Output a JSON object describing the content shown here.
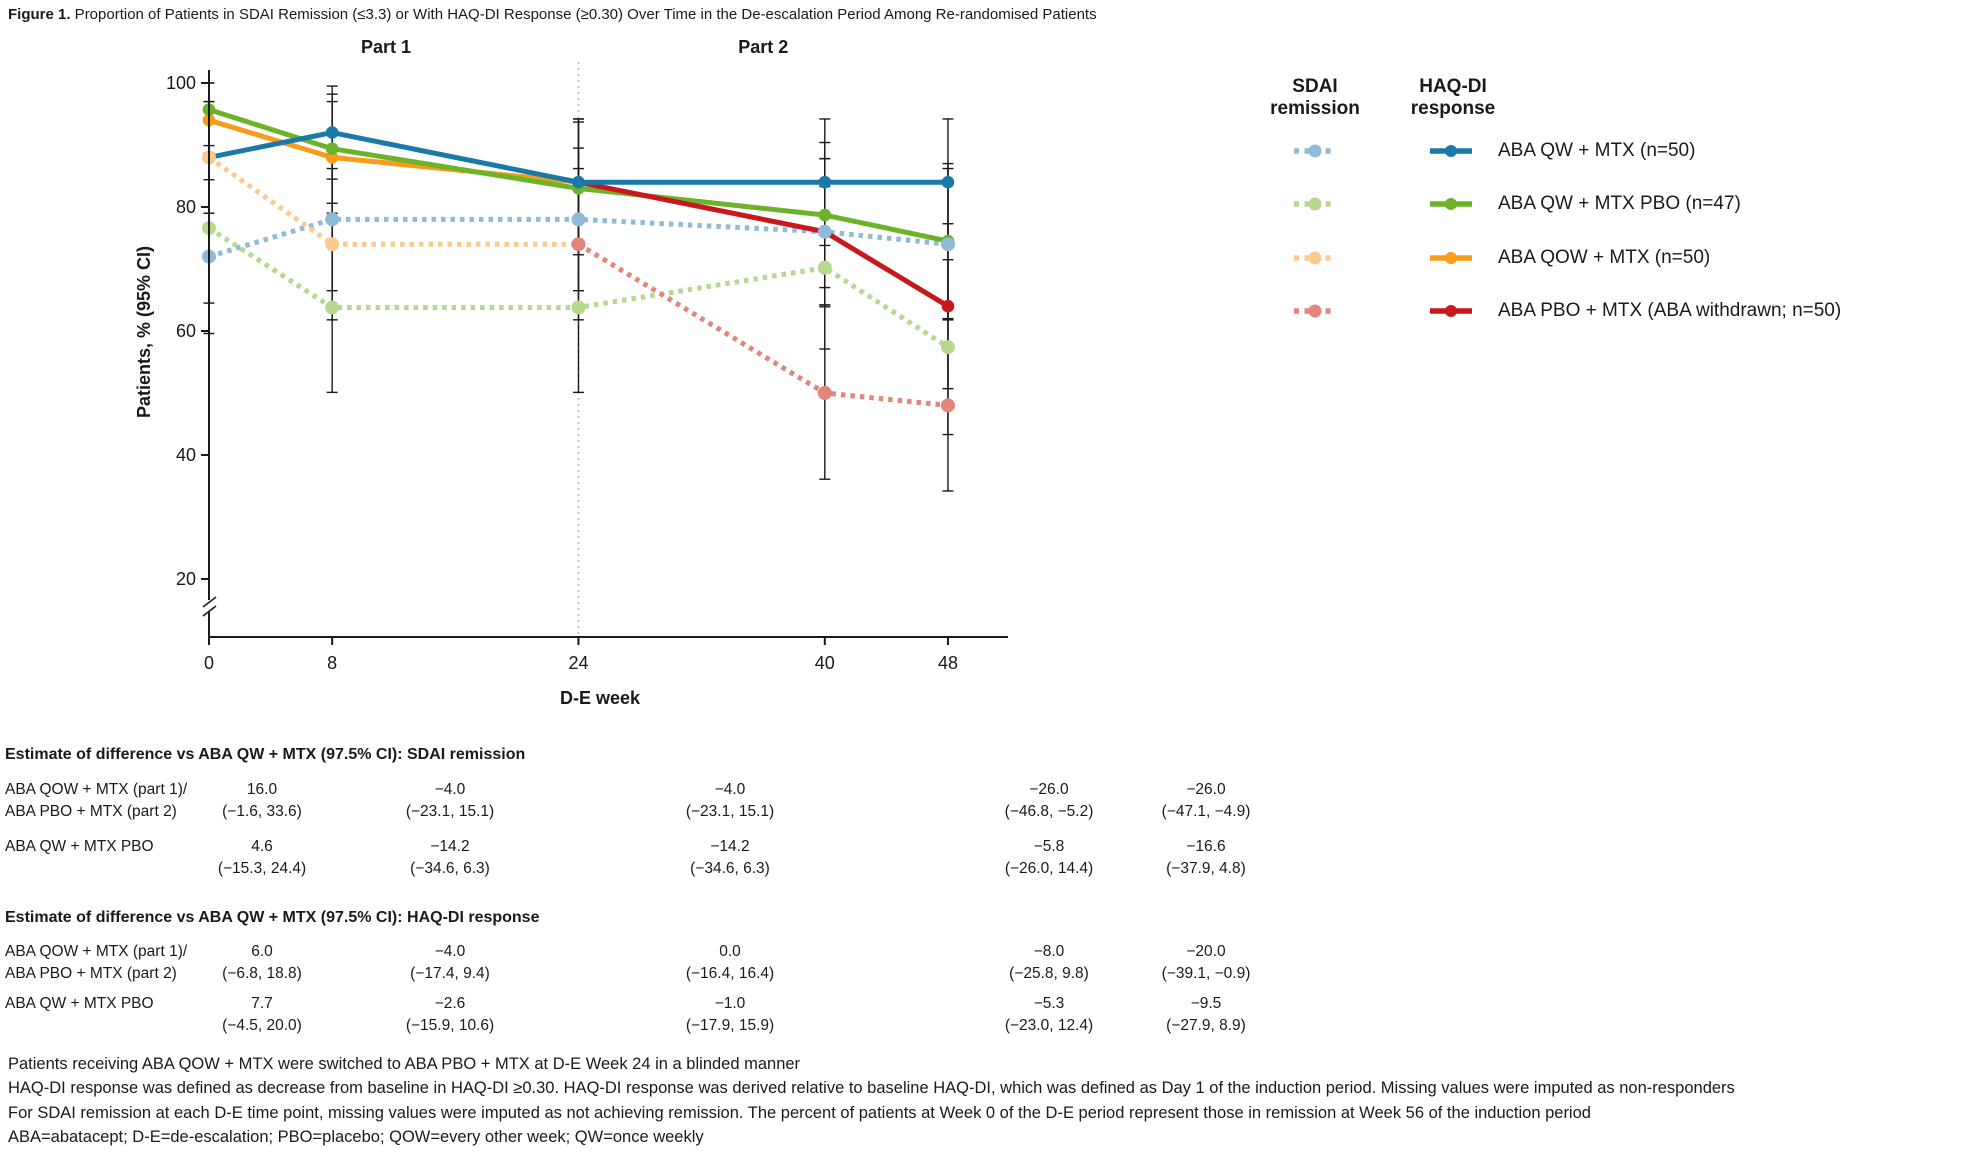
{
  "title": {
    "bold": "Figure 1.",
    "text": " Proportion of Patients in SDAI Remission (≤3.3) or With HAQ-DI Response (≥0.30) Over Time in the De-escalation Period Among Re-randomised Patients"
  },
  "chart_data": {
    "type": "line",
    "xlabel": "D-E week",
    "ylabel": "Patients, % (95% CI)",
    "x_ticks": [
      0,
      8,
      24,
      40,
      48
    ],
    "y_ticks": [
      20,
      40,
      60,
      80,
      100
    ],
    "ylim": [
      20,
      100
    ],
    "axis_break_below": 20,
    "part_labels": [
      {
        "text": "Part 1",
        "center_week": 11.5
      },
      {
        "text": "Part 2",
        "center_week": 36
      }
    ],
    "separator_week": 24,
    "series": [
      {
        "key": "sdai-aba-qw-mtx",
        "measure": "SDAI remission",
        "group": "ABA QW + MTX (n=50)",
        "style": "dotted",
        "color": "#8fbbd9",
        "x": [
          0,
          8,
          24,
          40,
          48
        ],
        "values": [
          72,
          78,
          78,
          76,
          74
        ],
        "ci_low": [
          59.6,
          66.5,
          66.5,
          64.2,
          61.8
        ],
        "ci_high": [
          84.4,
          89.5,
          89.5,
          87.8,
          86.2
        ],
        "marker_x": [
          0,
          8,
          24,
          40,
          48
        ]
      },
      {
        "key": "sdai-aba-qw-mtx-pbo",
        "measure": "SDAI remission",
        "group": "ABA QW + MTX PBO (n=47)",
        "style": "dotted",
        "color": "#b7d88f",
        "x": [
          0,
          8,
          24,
          40,
          48
        ],
        "values": [
          76.6,
          63.8,
          63.8,
          70.2,
          57.4
        ],
        "ci_low": [
          64.5,
          50.1,
          50.1,
          57.1,
          43.3
        ],
        "ci_high": [
          88.7,
          77.5,
          77.5,
          83.3,
          71.5
        ],
        "marker_x": [
          0,
          8,
          24,
          40,
          48
        ]
      },
      {
        "key": "sdai-aba-qow-mtx",
        "measure": "SDAI remission",
        "group": "ABA QOW + MTX (n=50)",
        "style": "dotted",
        "color": "#fbca8e",
        "x": [
          0,
          8,
          24
        ],
        "values": [
          88,
          74,
          74
        ],
        "ci_low": [
          79.0,
          61.8,
          61.8
        ],
        "ci_high": [
          97.0,
          86.2,
          86.2
        ],
        "marker_x": [
          0,
          8
        ]
      },
      {
        "key": "sdai-aba-pbo-mtx",
        "measure": "SDAI remission",
        "group": "ABA PBO + MTX (ABA withdrawn; n=50)",
        "style": "dotted",
        "color": "#e2857a",
        "x": [
          24,
          40,
          48
        ],
        "values": [
          74,
          50,
          48
        ],
        "ci_low": [
          null,
          36.1,
          34.2
        ],
        "ci_high": [
          null,
          63.9,
          61.8
        ],
        "marker_x": [
          24,
          40,
          48
        ]
      },
      {
        "key": "haqdi-aba-qow-mtx",
        "measure": "HAQ-DI response",
        "group": "ABA QOW + MTX (n=50)",
        "style": "solid",
        "color": "#f89c1b",
        "x": [
          0,
          8,
          24
        ],
        "values": [
          94,
          88,
          84
        ],
        "ci_low": [
          87.4,
          79.0,
          73.8
        ],
        "ci_high": [
          100,
          97.0,
          94.2
        ],
        "marker_x": [
          0,
          8,
          24
        ]
      },
      {
        "key": "haqdi-aba-qw-mtx-pbo",
        "measure": "HAQ-DI response",
        "group": "ABA QW + MTX PBO (n=47)",
        "style": "solid",
        "color": "#6db32a",
        "x": [
          0,
          8,
          24,
          40,
          48
        ],
        "values": [
          95.7,
          89.4,
          83,
          78.7,
          74.5
        ],
        "ci_low": [
          89.9,
          80.6,
          72.3,
          67.0,
          62.0
        ],
        "ci_high": [
          100,
          98.2,
          93.7,
          90.4,
          87.0
        ],
        "marker_x": [
          0,
          8,
          24,
          40,
          48
        ]
      },
      {
        "key": "haqdi-aba-pbo-mtx",
        "measure": "HAQ-DI response",
        "group": "ABA PBO + MTX (ABA withdrawn; n=50)",
        "style": "solid",
        "color": "#c8171d",
        "x": [
          24,
          40,
          48
        ],
        "values": [
          84,
          76,
          64
        ],
        "ci_low": [
          null,
          64.2,
          50.7
        ],
        "ci_high": [
          null,
          87.8,
          77.3
        ],
        "marker_x": [
          40,
          48
        ]
      },
      {
        "key": "haqdi-aba-qw-mtx",
        "measure": "HAQ-DI response",
        "group": "ABA QW + MTX (n=50)",
        "style": "solid",
        "color": "#1979a7",
        "x": [
          0,
          8,
          24,
          40,
          48
        ],
        "values": [
          88,
          92,
          84,
          84,
          84
        ],
        "ci_low": [
          79.0,
          84.5,
          73.8,
          73.8,
          73.8
        ],
        "ci_high": [
          97.0,
          99.5,
          94.2,
          94.2,
          94.2
        ],
        "marker_x": [
          0,
          8,
          24,
          40,
          48
        ]
      }
    ]
  },
  "legend": {
    "sdai_header_line1": "SDAI",
    "sdai_header_line2": "remission",
    "haqdi_header_line1": "HAQ-DI",
    "haqdi_header_line2": "response",
    "items": [
      {
        "label": "ABA QW + MTX (n=50)",
        "dotted_color": "#8fbbd9",
        "solid_color": "#1979a7"
      },
      {
        "label": "ABA QW + MTX PBO (n=47)",
        "dotted_color": "#b7d88f",
        "solid_color": "#6db32a"
      },
      {
        "label": "ABA QOW + MTX (n=50)",
        "dotted_color": "#fbca8e",
        "solid_color": "#f89c1b"
      },
      {
        "label": "ABA PBO + MTX (ABA withdrawn; n=50)",
        "dotted_color": "#e2857a",
        "solid_color": "#c8171d"
      }
    ]
  },
  "tables": [
    {
      "header": "Estimate of difference vs ABA QW + MTX (97.5% CI): SDAI remission",
      "rows": [
        {
          "label_line1": "ABA QOW + MTX (part 1)/",
          "label_line2": "ABA PBO + MTX (part 2)",
          "cells": [
            {
              "est": "16.0",
              "ci": "(−1.6, 33.6)"
            },
            {
              "est": "−4.0",
              "ci": "(−23.1, 15.1)"
            },
            {
              "est": "−4.0",
              "ci": "(−23.1, 15.1)"
            },
            {
              "est": "−26.0",
              "ci": "(−46.8, −5.2)"
            },
            {
              "est": "−26.0",
              "ci": "(−47.1, −4.9)"
            }
          ]
        },
        {
          "label_line1": "ABA QW + MTX PBO",
          "label_line2": "",
          "cells": [
            {
              "est": "4.6",
              "ci": "(−15.3, 24.4)"
            },
            {
              "est": "−14.2",
              "ci": "(−34.6, 6.3)"
            },
            {
              "est": "−14.2",
              "ci": "(−34.6, 6.3)"
            },
            {
              "est": "−5.8",
              "ci": "(−26.0, 14.4)"
            },
            {
              "est": "−16.6",
              "ci": "(−37.9, 4.8)"
            }
          ]
        }
      ]
    },
    {
      "header": "Estimate of difference vs ABA QW + MTX (97.5% CI): HAQ-DI response",
      "rows": [
        {
          "label_line1": "ABA QOW + MTX (part 1)/",
          "label_line2": "ABA PBO + MTX (part 2)",
          "cells": [
            {
              "est": "6.0",
              "ci": "(−6.8, 18.8)"
            },
            {
              "est": "−4.0",
              "ci": "(−17.4, 9.4)"
            },
            {
              "est": "0.0",
              "ci": "(−16.4, 16.4)"
            },
            {
              "est": "−8.0",
              "ci": "(−25.8, 9.8)"
            },
            {
              "est": "−20.0",
              "ci": "(−39.1, −0.9)"
            }
          ]
        },
        {
          "label_line1": "ABA QW + MTX PBO",
          "label_line2": "",
          "cells": [
            {
              "est": "7.7",
              "ci": "(−4.5, 20.0)"
            },
            {
              "est": "−2.6",
              "ci": "(−15.9, 10.6)"
            },
            {
              "est": "−1.0",
              "ci": "(−17.9, 15.9)"
            },
            {
              "est": "−5.3",
              "ci": "(−23.0, 12.4)"
            },
            {
              "est": "−9.5",
              "ci": "(−27.9, 8.9)"
            }
          ]
        }
      ]
    }
  ],
  "footnotes": [
    "Patients receiving ABA QOW + MTX were switched to ABA PBO + MTX at D-E Week 24 in a blinded manner",
    "HAQ-DI response was defined as decrease from baseline in HAQ-DI ≥0.30. HAQ-DI response was derived relative to baseline HAQ-DI, which was defined as Day 1 of the induction period. Missing values were imputed as non-responders",
    "For SDAI remission at each D-E time point, missing values were imputed as not achieving remission. The percent of patients at Week 0 of the D-E period represent those in remission at Week 56 of the induction period",
    "ABA=abatacept; D-E=de-escalation; PBO=placebo; QOW=every other week; QW=once weekly"
  ]
}
